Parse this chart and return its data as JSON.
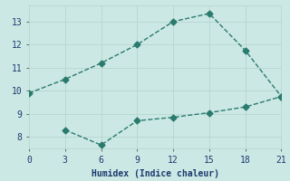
{
  "line1_x": [
    0,
    3,
    6,
    9,
    12,
    15,
    18,
    21
  ],
  "line1_y": [
    9.9,
    10.5,
    11.2,
    12.0,
    13.0,
    13.35,
    11.75,
    9.75
  ],
  "line2_x": [
    3,
    6,
    9,
    12,
    15,
    18,
    21
  ],
  "line2_y": [
    8.3,
    7.65,
    8.7,
    8.85,
    9.05,
    9.3,
    9.75
  ],
  "line_color": "#2a7a6e",
  "bg_color": "#cce8e4",
  "grid_color": "#b8d8d2",
  "xlabel": "Humidex (Indice chaleur)",
  "xlim": [
    0,
    21
  ],
  "ylim": [
    7.5,
    13.7
  ],
  "xticks": [
    0,
    3,
    6,
    9,
    12,
    15,
    18,
    21
  ],
  "yticks": [
    8,
    9,
    10,
    11,
    12,
    13
  ],
  "markersize": 3.5,
  "linewidth": 1.0
}
